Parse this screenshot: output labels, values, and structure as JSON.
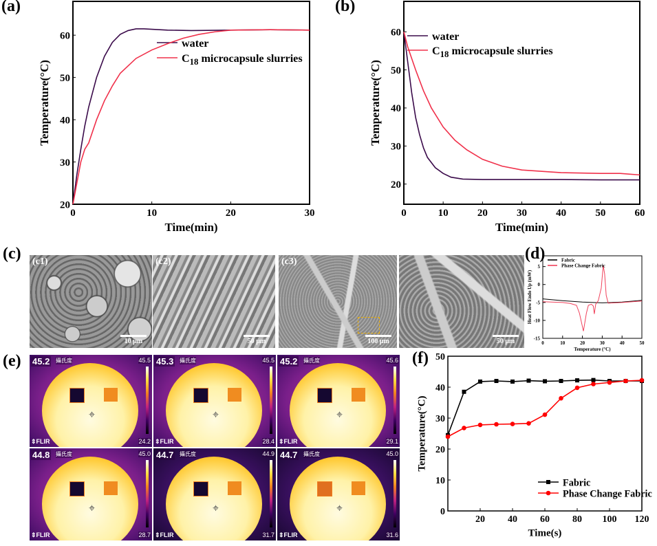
{
  "panel_labels": {
    "a": "(a)",
    "b": "(b)",
    "c": "(c)",
    "d": "(d)",
    "e": "(e)",
    "f": "(f)"
  },
  "sem": {
    "labels": [
      "(c1)",
      "(c2)",
      "(c3)"
    ],
    "scale_bars": [
      "10 μm",
      "50 μm",
      "100 μm",
      "50 μm"
    ]
  },
  "thermal": [
    {
      "max": "45.2",
      "unit": "攝氏度",
      "scale_max": "45.5",
      "scale_min": "24.2",
      "brand": "FLIR"
    },
    {
      "max": "45.3",
      "unit": "攝氏度",
      "scale_max": "45.5",
      "scale_min": "28.4",
      "brand": "FLIR"
    },
    {
      "max": "45.2",
      "unit": "攝氏度",
      "scale_max": "45.6",
      "scale_min": "29.1",
      "brand": "FLIR"
    },
    {
      "max": "44.8",
      "unit": "攝氏度",
      "scale_max": "45.0",
      "scale_min": "28.7",
      "brand": "FLIR"
    },
    {
      "max": "44.7",
      "unit": "攝氏度",
      "scale_max": "44.9",
      "scale_min": "31.7",
      "brand": "FLIR"
    },
    {
      "max": "44.7",
      "unit": "攝氏度",
      "scale_max": "45.0",
      "scale_min": "31.6",
      "brand": "FLIR"
    }
  ],
  "chart_data": [
    {
      "id": "a",
      "type": "line",
      "xlabel": "Time(min)",
      "ylabel": "Temperature(°C)",
      "xlim": [
        0,
        30
      ],
      "ylim": [
        20,
        68
      ],
      "xticks": [
        0,
        10,
        20,
        30
      ],
      "yticks": [
        20,
        30,
        40,
        50,
        60
      ],
      "legend": "center-right",
      "grid": false,
      "series": [
        {
          "name": "water",
          "color": "#3a0a4a",
          "points": [
            [
              0,
              20
            ],
            [
              0.5,
              27
            ],
            [
              1,
              33
            ],
            [
              1.5,
              38.5
            ],
            [
              2,
              43
            ],
            [
              3,
              50
            ],
            [
              4,
              55
            ],
            [
              5,
              58.3
            ],
            [
              6,
              60.2
            ],
            [
              7,
              61.1
            ],
            [
              8,
              61.5
            ],
            [
              9,
              61.5
            ],
            [
              10,
              61.4
            ],
            [
              12,
              61.2
            ],
            [
              15,
              61.1
            ],
            [
              20,
              61.2
            ],
            [
              25,
              61.3
            ],
            [
              30,
              61.2
            ]
          ]
        },
        {
          "name": "C18 microcapsule slurries",
          "color": "#f0304a",
          "points": [
            [
              0,
              20
            ],
            [
              0.5,
              25
            ],
            [
              1,
              30
            ],
            [
              1.5,
              33
            ],
            [
              2,
              34.5
            ],
            [
              3,
              40
            ],
            [
              4,
              44.5
            ],
            [
              5,
              48
            ],
            [
              6,
              51
            ],
            [
              8,
              54.5
            ],
            [
              10,
              56.5
            ],
            [
              12,
              58
            ],
            [
              14,
              59.3
            ],
            [
              16,
              60.2
            ],
            [
              18,
              60.8
            ],
            [
              20,
              61.2
            ],
            [
              25,
              61.3
            ],
            [
              30,
              61.2
            ]
          ]
        }
      ]
    },
    {
      "id": "b",
      "type": "line",
      "xlabel": "Time(min)",
      "ylabel": "Temperature(°C)",
      "xlim": [
        0,
        60
      ],
      "ylim": [
        14.7,
        68
      ],
      "xticks": [
        0,
        10,
        20,
        30,
        40,
        50,
        60
      ],
      "yticks": [
        20,
        30,
        40,
        50,
        60
      ],
      "legend": "top-center",
      "grid": false,
      "series": [
        {
          "name": "water",
          "color": "#3a0a4a",
          "points": [
            [
              0,
              60
            ],
            [
              1,
              52
            ],
            [
              2,
              44
            ],
            [
              3,
              37.5
            ],
            [
              4,
              33
            ],
            [
              5,
              29.5
            ],
            [
              6,
              27
            ],
            [
              8,
              24.3
            ],
            [
              10,
              22.8
            ],
            [
              12,
              21.8
            ],
            [
              15,
              21.3
            ],
            [
              20,
              21.2
            ],
            [
              30,
              21.2
            ],
            [
              40,
              21.2
            ],
            [
              50,
              21.1
            ],
            [
              60,
              21.1
            ]
          ]
        },
        {
          "name": "C18 microcapsule slurries",
          "color": "#f0304a",
          "points": [
            [
              0,
              60
            ],
            [
              1,
              56
            ],
            [
              2,
              53
            ],
            [
              3,
              50
            ],
            [
              5,
              44.5
            ],
            [
              7,
              40
            ],
            [
              10,
              35
            ],
            [
              13,
              31.5
            ],
            [
              16,
              29
            ],
            [
              20,
              26.5
            ],
            [
              25,
              24.7
            ],
            [
              30,
              23.7
            ],
            [
              40,
              23
            ],
            [
              50,
              22.8
            ],
            [
              55,
              22.8
            ],
            [
              60,
              22.4
            ]
          ]
        }
      ]
    },
    {
      "id": "d",
      "type": "line",
      "xlabel": "Temperature (°C)",
      "ylabel": "Heat Flow Endo Up (mW)",
      "xlim": [
        0,
        50
      ],
      "ylim": [
        -15,
        8
      ],
      "xticks": [
        0,
        10,
        20,
        30,
        40,
        50
      ],
      "yticks": [
        -15,
        -10,
        -5,
        0,
        5
      ],
      "legend": "top-left",
      "grid": false,
      "series": [
        {
          "name": "Fabric",
          "color": "#000000",
          "points": [
            [
              0,
              -4
            ],
            [
              10,
              -4.5
            ],
            [
              20,
              -4.9
            ],
            [
              30,
              -5.1
            ],
            [
              40,
              -4.9
            ],
            [
              50,
              -4.4
            ]
          ]
        },
        {
          "name": "Phase Change Fabric",
          "color": "#f0405a",
          "points": [
            [
              0,
              -4.8
            ],
            [
              10,
              -5
            ],
            [
              14,
              -5.3
            ],
            [
              17,
              -5.8
            ],
            [
              18.5,
              -8
            ],
            [
              20.5,
              -13
            ],
            [
              22,
              -8
            ],
            [
              23,
              -5.8
            ],
            [
              24.5,
              -5.5
            ],
            [
              25.5,
              -6
            ],
            [
              26,
              -8.2
            ],
            [
              26.7,
              -5.5
            ],
            [
              28,
              -4.5
            ],
            [
              29.5,
              -1
            ],
            [
              30.5,
              5.3
            ],
            [
              31.2,
              3
            ],
            [
              32,
              -3
            ],
            [
              33,
              -5.2
            ],
            [
              40,
              -5
            ],
            [
              50,
              -4.6
            ]
          ]
        }
      ]
    },
    {
      "id": "f",
      "type": "line",
      "xlabel": "Time(s)",
      "ylabel": "Temperature(°C)",
      "xlim": [
        0,
        120
      ],
      "ylim": [
        0,
        50
      ],
      "xticks": [
        20,
        40,
        60,
        80,
        100,
        120
      ],
      "yticks": [
        0,
        10,
        20,
        30,
        40,
        50
      ],
      "legend": "bottom-right",
      "grid": false,
      "series": [
        {
          "name": "Fabric",
          "color": "#000000",
          "marker": "square",
          "points": [
            [
              0,
              24.5
            ],
            [
              10,
              38.5
            ],
            [
              20,
              41.8
            ],
            [
              30,
              42
            ],
            [
              40,
              41.8
            ],
            [
              50,
              42.1
            ],
            [
              60,
              41.9
            ],
            [
              70,
              42
            ],
            [
              80,
              42.2
            ],
            [
              90,
              42.3
            ],
            [
              100,
              42
            ],
            [
              110,
              42
            ],
            [
              120,
              42
            ]
          ]
        },
        {
          "name": "Phase Change Fabric",
          "color": "#ff0000",
          "marker": "circle",
          "points": [
            [
              0,
              24
            ],
            [
              10,
              26.8
            ],
            [
              20,
              27.8
            ],
            [
              30,
              28
            ],
            [
              40,
              28.1
            ],
            [
              50,
              28.3
            ],
            [
              60,
              31.1
            ],
            [
              70,
              36.4
            ],
            [
              80,
              39.8
            ],
            [
              90,
              41
            ],
            [
              100,
              41.5
            ],
            [
              110,
              42
            ],
            [
              120,
              42.2
            ]
          ]
        }
      ]
    }
  ]
}
